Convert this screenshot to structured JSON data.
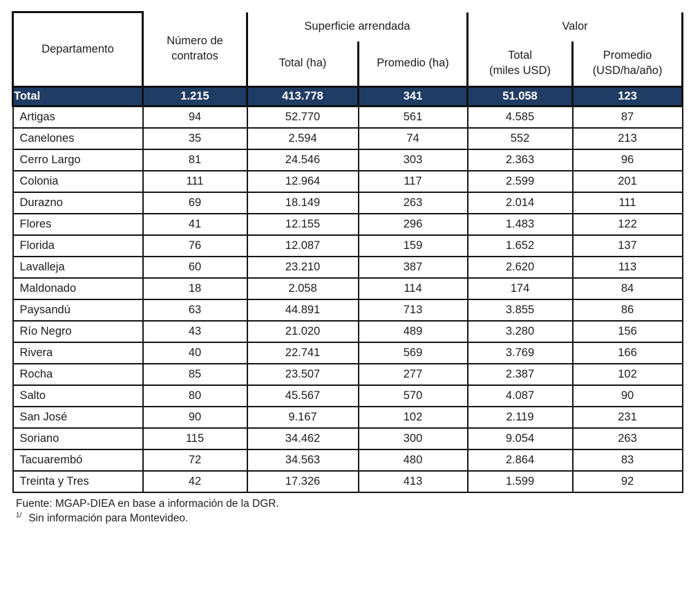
{
  "table": {
    "header": {
      "departamento": "Departamento",
      "contratos": "Número de\ncontratos",
      "superficie_group": "Superficie arrendada",
      "valor_group": "Valor",
      "sup_total": "Total (ha)",
      "sup_promedio": "Promedio (ha)",
      "val_total": "Total\n(miles USD)",
      "val_promedio": "Promedio\n(USD/ha/año)"
    },
    "total_row": {
      "label": "Total",
      "values": [
        "1.215",
        "413.778",
        "341",
        "51.058",
        "123"
      ]
    },
    "rows": [
      {
        "name": "Artigas",
        "values": [
          "94",
          "52.770",
          "561",
          "4.585",
          "87"
        ]
      },
      {
        "name": "Canelones",
        "values": [
          "35",
          "2.594",
          "74",
          "552",
          "213"
        ]
      },
      {
        "name": "Cerro Largo",
        "values": [
          "81",
          "24.546",
          "303",
          "2.363",
          "96"
        ]
      },
      {
        "name": "Colonia",
        "values": [
          "111",
          "12.964",
          "117",
          "2.599",
          "201"
        ]
      },
      {
        "name": "Durazno",
        "values": [
          "69",
          "18.149",
          "263",
          "2.014",
          "111"
        ]
      },
      {
        "name": "Flores",
        "values": [
          "41",
          "12.155",
          "296",
          "1.483",
          "122"
        ]
      },
      {
        "name": "Florida",
        "values": [
          "76",
          "12.087",
          "159",
          "1.652",
          "137"
        ]
      },
      {
        "name": "Lavalleja",
        "values": [
          "60",
          "23.210",
          "387",
          "2.620",
          "113"
        ]
      },
      {
        "name": "Maldonado",
        "values": [
          "18",
          "2.058",
          "114",
          "174",
          "84"
        ]
      },
      {
        "name": "Paysandú",
        "values": [
          "63",
          "44.891",
          "713",
          "3.855",
          "86"
        ]
      },
      {
        "name": "Río Negro",
        "values": [
          "43",
          "21.020",
          "489",
          "3.280",
          "156"
        ]
      },
      {
        "name": "Rivera",
        "values": [
          "40",
          "22.741",
          "569",
          "3.769",
          "166"
        ]
      },
      {
        "name": "Rocha",
        "values": [
          "85",
          "23.507",
          "277",
          "2.387",
          "102"
        ]
      },
      {
        "name": "Salto",
        "values": [
          "80",
          "45.567",
          "570",
          "4.087",
          "90"
        ]
      },
      {
        "name": "San José",
        "values": [
          "90",
          "9.167",
          "102",
          "2.119",
          "231"
        ]
      },
      {
        "name": "Soriano",
        "values": [
          "115",
          "34.462",
          "300",
          "9.054",
          "263"
        ]
      },
      {
        "name": "Tacuarembó",
        "values": [
          "72",
          "34.563",
          "480",
          "2.864",
          "83"
        ]
      },
      {
        "name": "Treinta y Tres",
        "values": [
          "42",
          "17.326",
          "413",
          "1.599",
          "92"
        ]
      }
    ]
  },
  "footer": {
    "source": "Fuente: MGAP-DIEA en base a información de la DGR.",
    "note_marker": "1/",
    "note": "Sin información para Montevideo."
  },
  "colors": {
    "total_row_bg": "#1f3c64",
    "total_row_text": "#ffffff",
    "border": "#161616"
  }
}
